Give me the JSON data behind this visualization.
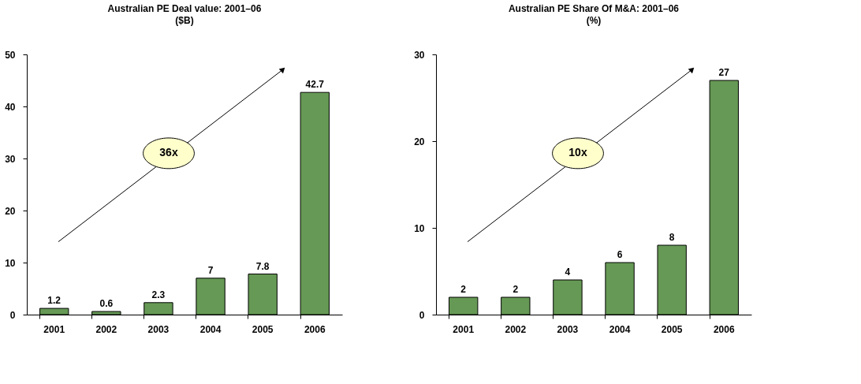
{
  "chart_data": [
    {
      "type": "bar",
      "title": "Australian PE Deal value: 2001–06",
      "subtitle": "($B)",
      "categories": [
        "2001",
        "2002",
        "2003",
        "2004",
        "2005",
        "2006"
      ],
      "values": [
        1.2,
        0.6,
        2.3,
        7,
        7.8,
        42.7
      ],
      "color": "#669955",
      "ylim": [
        0,
        50
      ],
      "yticks": [
        0,
        10,
        20,
        30,
        40,
        50
      ],
      "grid": false,
      "data_labels": true,
      "annotations": [
        "36x"
      ]
    },
    {
      "type": "bar",
      "title": "Australian PE Share Of M&A: 2001–06",
      "subtitle": "(%)",
      "categories": [
        "2001",
        "2002",
        "2003",
        "2004",
        "2005",
        "2006"
      ],
      "values": [
        2,
        2,
        4,
        6,
        8,
        27
      ],
      "color": "#669955",
      "ylim": [
        0,
        30
      ],
      "yticks": [
        0,
        10,
        20,
        30
      ],
      "grid": false,
      "data_labels": true,
      "annotations": [
        "10x"
      ]
    }
  ]
}
